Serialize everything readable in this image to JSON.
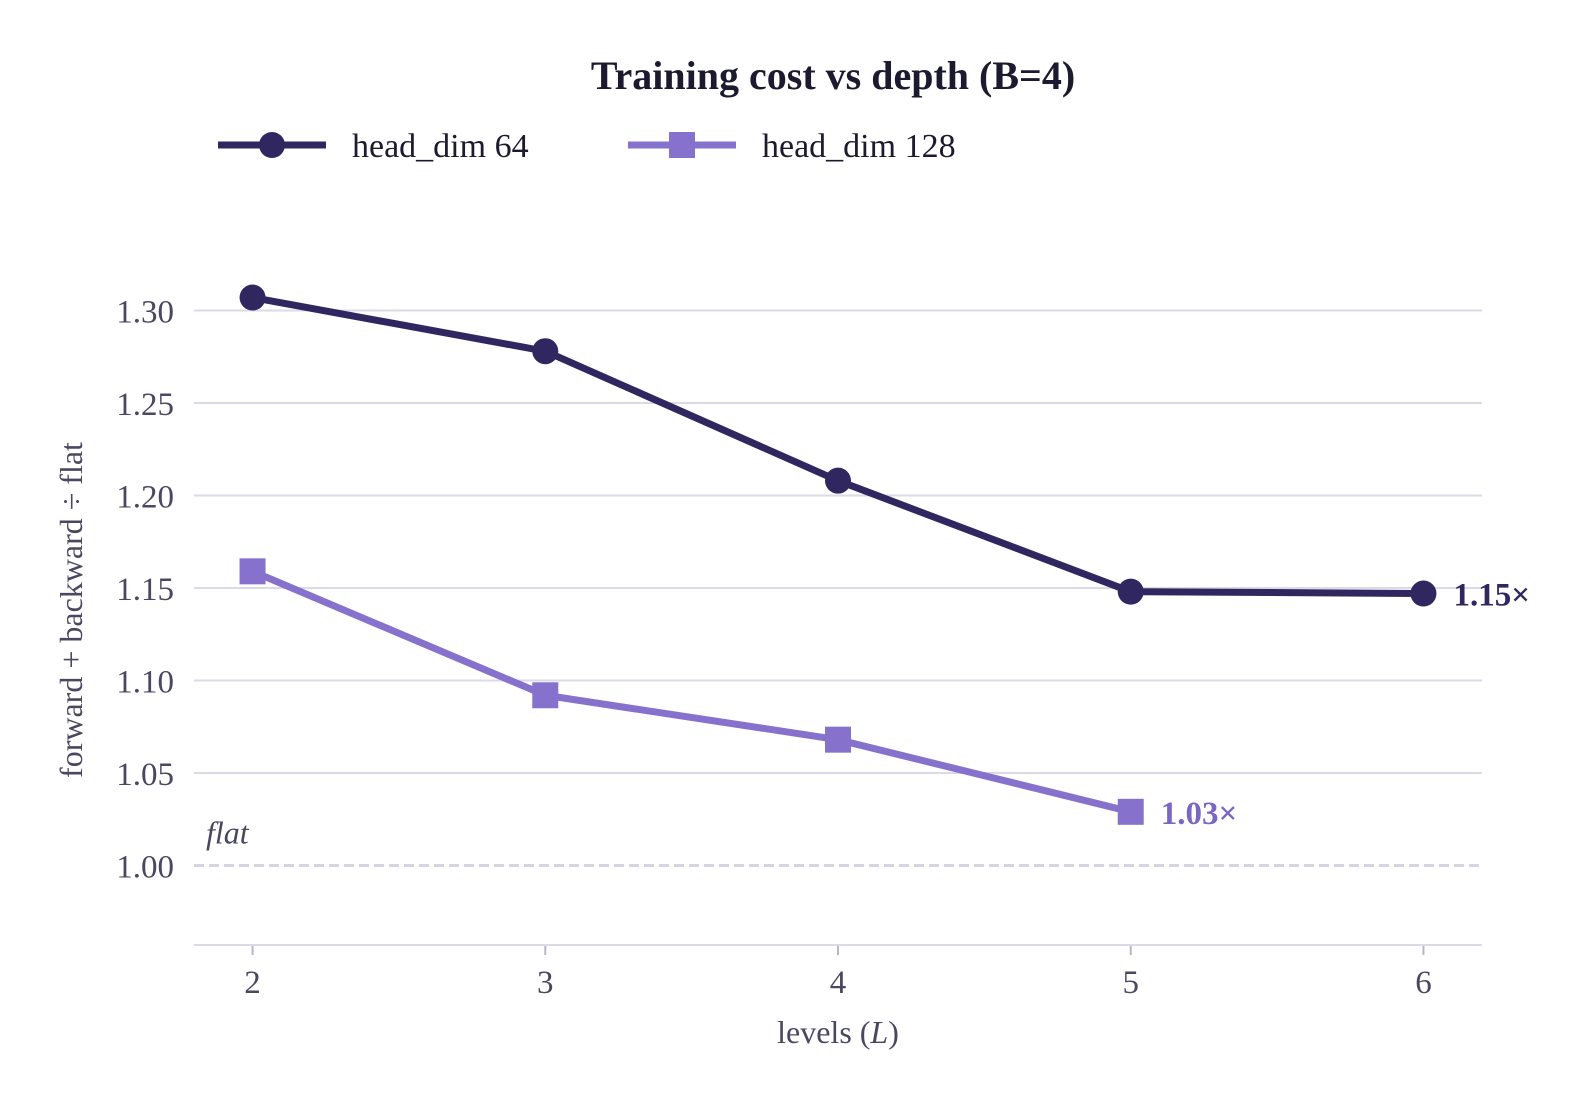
{
  "chart_data": {
    "type": "line",
    "title": "Training cost vs depth  (B=4)",
    "xlabel": "levels (L)",
    "xlabel_parts": {
      "prefix": "levels (",
      "var": "L",
      "suffix": ")"
    },
    "ylabel": "forward + backward ÷ flat",
    "x": [
      2,
      3,
      4,
      5,
      6
    ],
    "xlim": [
      1.8,
      6.2
    ],
    "ylim": [
      0.957,
      1.33
    ],
    "yticks": [
      1.0,
      1.05,
      1.1,
      1.15,
      1.2,
      1.25,
      1.3
    ],
    "ytick_labels": [
      "1.00",
      "1.05",
      "1.10",
      "1.15",
      "1.20",
      "1.25",
      "1.30"
    ],
    "xtick_labels": [
      "2",
      "3",
      "4",
      "5",
      "6"
    ],
    "grid": true,
    "legend_position": "top-left",
    "reference_line": {
      "y": 1.0,
      "label": "flat",
      "style": "dashed"
    },
    "series": [
      {
        "name": "head_dim 64",
        "marker": "circle",
        "color": "#302660",
        "x": [
          2,
          3,
          4,
          5,
          6
        ],
        "values": [
          1.307,
          1.278,
          1.208,
          1.148,
          1.147
        ],
        "end_label": "1.15×"
      },
      {
        "name": "head_dim 128",
        "marker": "square",
        "color": "#8672cc",
        "label_color": "#7a66c4",
        "x": [
          2,
          3,
          4,
          5
        ],
        "values": [
          1.159,
          1.092,
          1.068,
          1.029
        ],
        "end_label": "1.03×"
      }
    ]
  }
}
